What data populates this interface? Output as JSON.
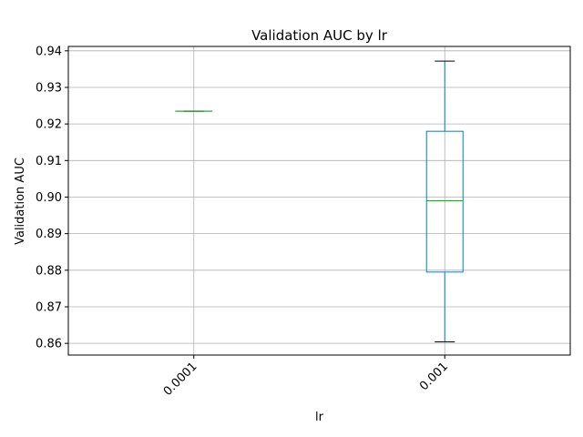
{
  "chart_data": {
    "type": "box",
    "title": "Validation AUC by lr",
    "xlabel": "lr",
    "ylabel": "Validation AUC",
    "categories": [
      "0.0001",
      "0.001"
    ],
    "boxes": [
      {
        "category": "0.0001",
        "whisker_low": 0.9235,
        "q1": 0.9235,
        "median": 0.9235,
        "q3": 0.9235,
        "whisker_high": 0.9235
      },
      {
        "category": "0.001",
        "whisker_low": 0.8604,
        "q1": 0.8795,
        "median": 0.899,
        "q3": 0.918,
        "whisker_high": 0.9372
      }
    ],
    "ylim": [
      0.8568,
      0.9412
    ],
    "yticks": [
      0.86,
      0.87,
      0.88,
      0.89,
      0.9,
      0.91,
      0.92,
      0.93,
      0.94
    ],
    "ytick_labels": [
      "0.86",
      "0.87",
      "0.88",
      "0.89",
      "0.90",
      "0.91",
      "0.92",
      "0.93",
      "0.94"
    ],
    "grid": true,
    "colors": {
      "box": "#1f77b4",
      "median": "#2ca02c",
      "whisker": "#1f77b4",
      "cap": "#000000",
      "grid": "#b0b0b0"
    }
  }
}
